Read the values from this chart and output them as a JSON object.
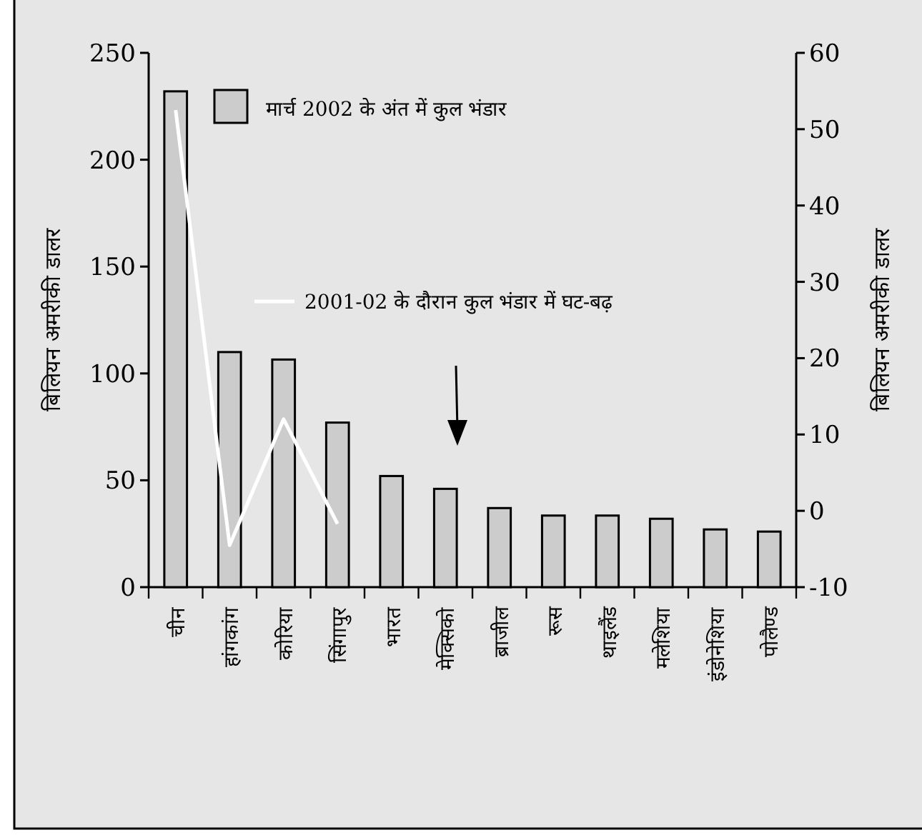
{
  "chart_data": {
    "type": "bar",
    "categories": [
      "चीन",
      "हांगकांग",
      "कोरिया",
      "सिंगापुर",
      "भारत",
      "मेक्सिको",
      "ब्राजील",
      "रूस",
      "थाइलैंड",
      "मलेशिया",
      "इंडोनेशिया",
      "पोलैण्ड"
    ],
    "series": [
      {
        "name": "मार्च 2002 के अंत में कुल भंडार",
        "color": "#cccccc",
        "values": [
          232,
          110,
          106.5,
          77,
          52,
          46,
          37,
          33.5,
          33.5,
          32,
          27,
          26
        ]
      },
      {
        "name": "2001-02 के दौरान कुल भंडार में घट-बढ़",
        "type": "line",
        "axis": "y2",
        "color": "#ffffff",
        "values": [
          52.5,
          -4.5,
          12,
          -1.7,
          null,
          null,
          null,
          null,
          null,
          null,
          null,
          null
        ]
      }
    ],
    "ylabel": "बिलियन अमरीकी डालर",
    "y2label": "बिलियन अमरीकी डालर",
    "ylim": [
      0,
      250
    ],
    "yticks": [
      0,
      50,
      100,
      150,
      200,
      250
    ],
    "y2lim": [
      -10,
      60
    ],
    "y2ticks": [
      -10,
      0,
      10,
      20,
      30,
      40,
      50,
      60
    ],
    "grid": false,
    "legend": "top",
    "marker": "none",
    "line_style": "solid"
  }
}
